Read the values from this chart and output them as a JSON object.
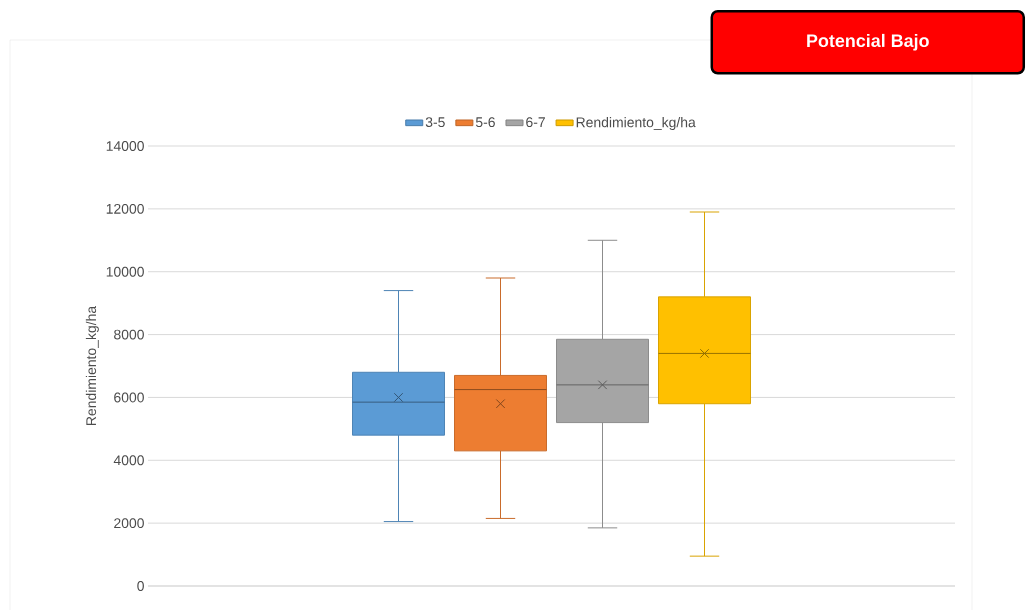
{
  "chart_data": {
    "type": "box",
    "ylabel": "Rendimiento_kg/ha",
    "categories": [
      null
    ],
    "series": [
      {
        "name": "3-5",
        "color": "#5b9bd5",
        "boxes": [
          {
            "low": 2050,
            "q1": 4800,
            "median": 5850,
            "q3": 6800,
            "high": 9400,
            "mean": 6000
          }
        ]
      },
      {
        "name": "5-6",
        "color": "#ed7d31",
        "boxes": [
          {
            "low": 2150,
            "q1": 4300,
            "median": 6250,
            "q3": 6700,
            "high": 9800,
            "mean": 5800
          }
        ]
      },
      {
        "name": "6-7",
        "color": "#a5a5a5",
        "boxes": [
          {
            "low": 1850,
            "q1": 5200,
            "median": 6400,
            "q3": 7850,
            "high": 11000,
            "mean": 6400
          }
        ]
      },
      {
        "name": "Rendimiento_kg/ha",
        "color": "#ffc000",
        "boxes": [
          {
            "low": 950,
            "q1": 5800,
            "median": 7400,
            "q3": 9200,
            "high": 11900,
            "mean": 7400
          }
        ]
      }
    ],
    "ylim": [
      0,
      14000
    ],
    "yticks": [
      0,
      2000,
      4000,
      6000,
      8000,
      10000,
      12000,
      14000
    ],
    "grid": "y",
    "legend": "top",
    "tick_labels": "y",
    "marker": "cross",
    "annotations": [
      "Potencial Bajo"
    ]
  }
}
